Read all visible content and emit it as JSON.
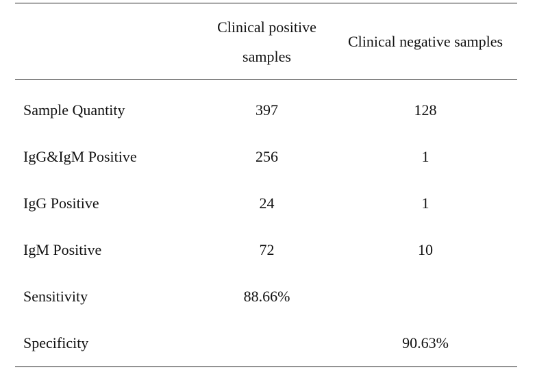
{
  "table": {
    "headers": [
      "",
      "Clinical positive samples",
      "Clinical negative samples"
    ],
    "rows": [
      {
        "label": "Sample Quantity",
        "positive": "397",
        "negative": "128"
      },
      {
        "label": "IgG&IgM Positive",
        "positive": "256",
        "negative": "1"
      },
      {
        "label": "IgG Positive",
        "positive": "24",
        "negative": "1"
      },
      {
        "label": "IgM Positive",
        "positive": "72",
        "negative": "10"
      },
      {
        "label": "Sensitivity",
        "positive": "88.66%",
        "negative": ""
      },
      {
        "label": "Specificity",
        "positive": "",
        "negative": "90.63%"
      }
    ]
  }
}
